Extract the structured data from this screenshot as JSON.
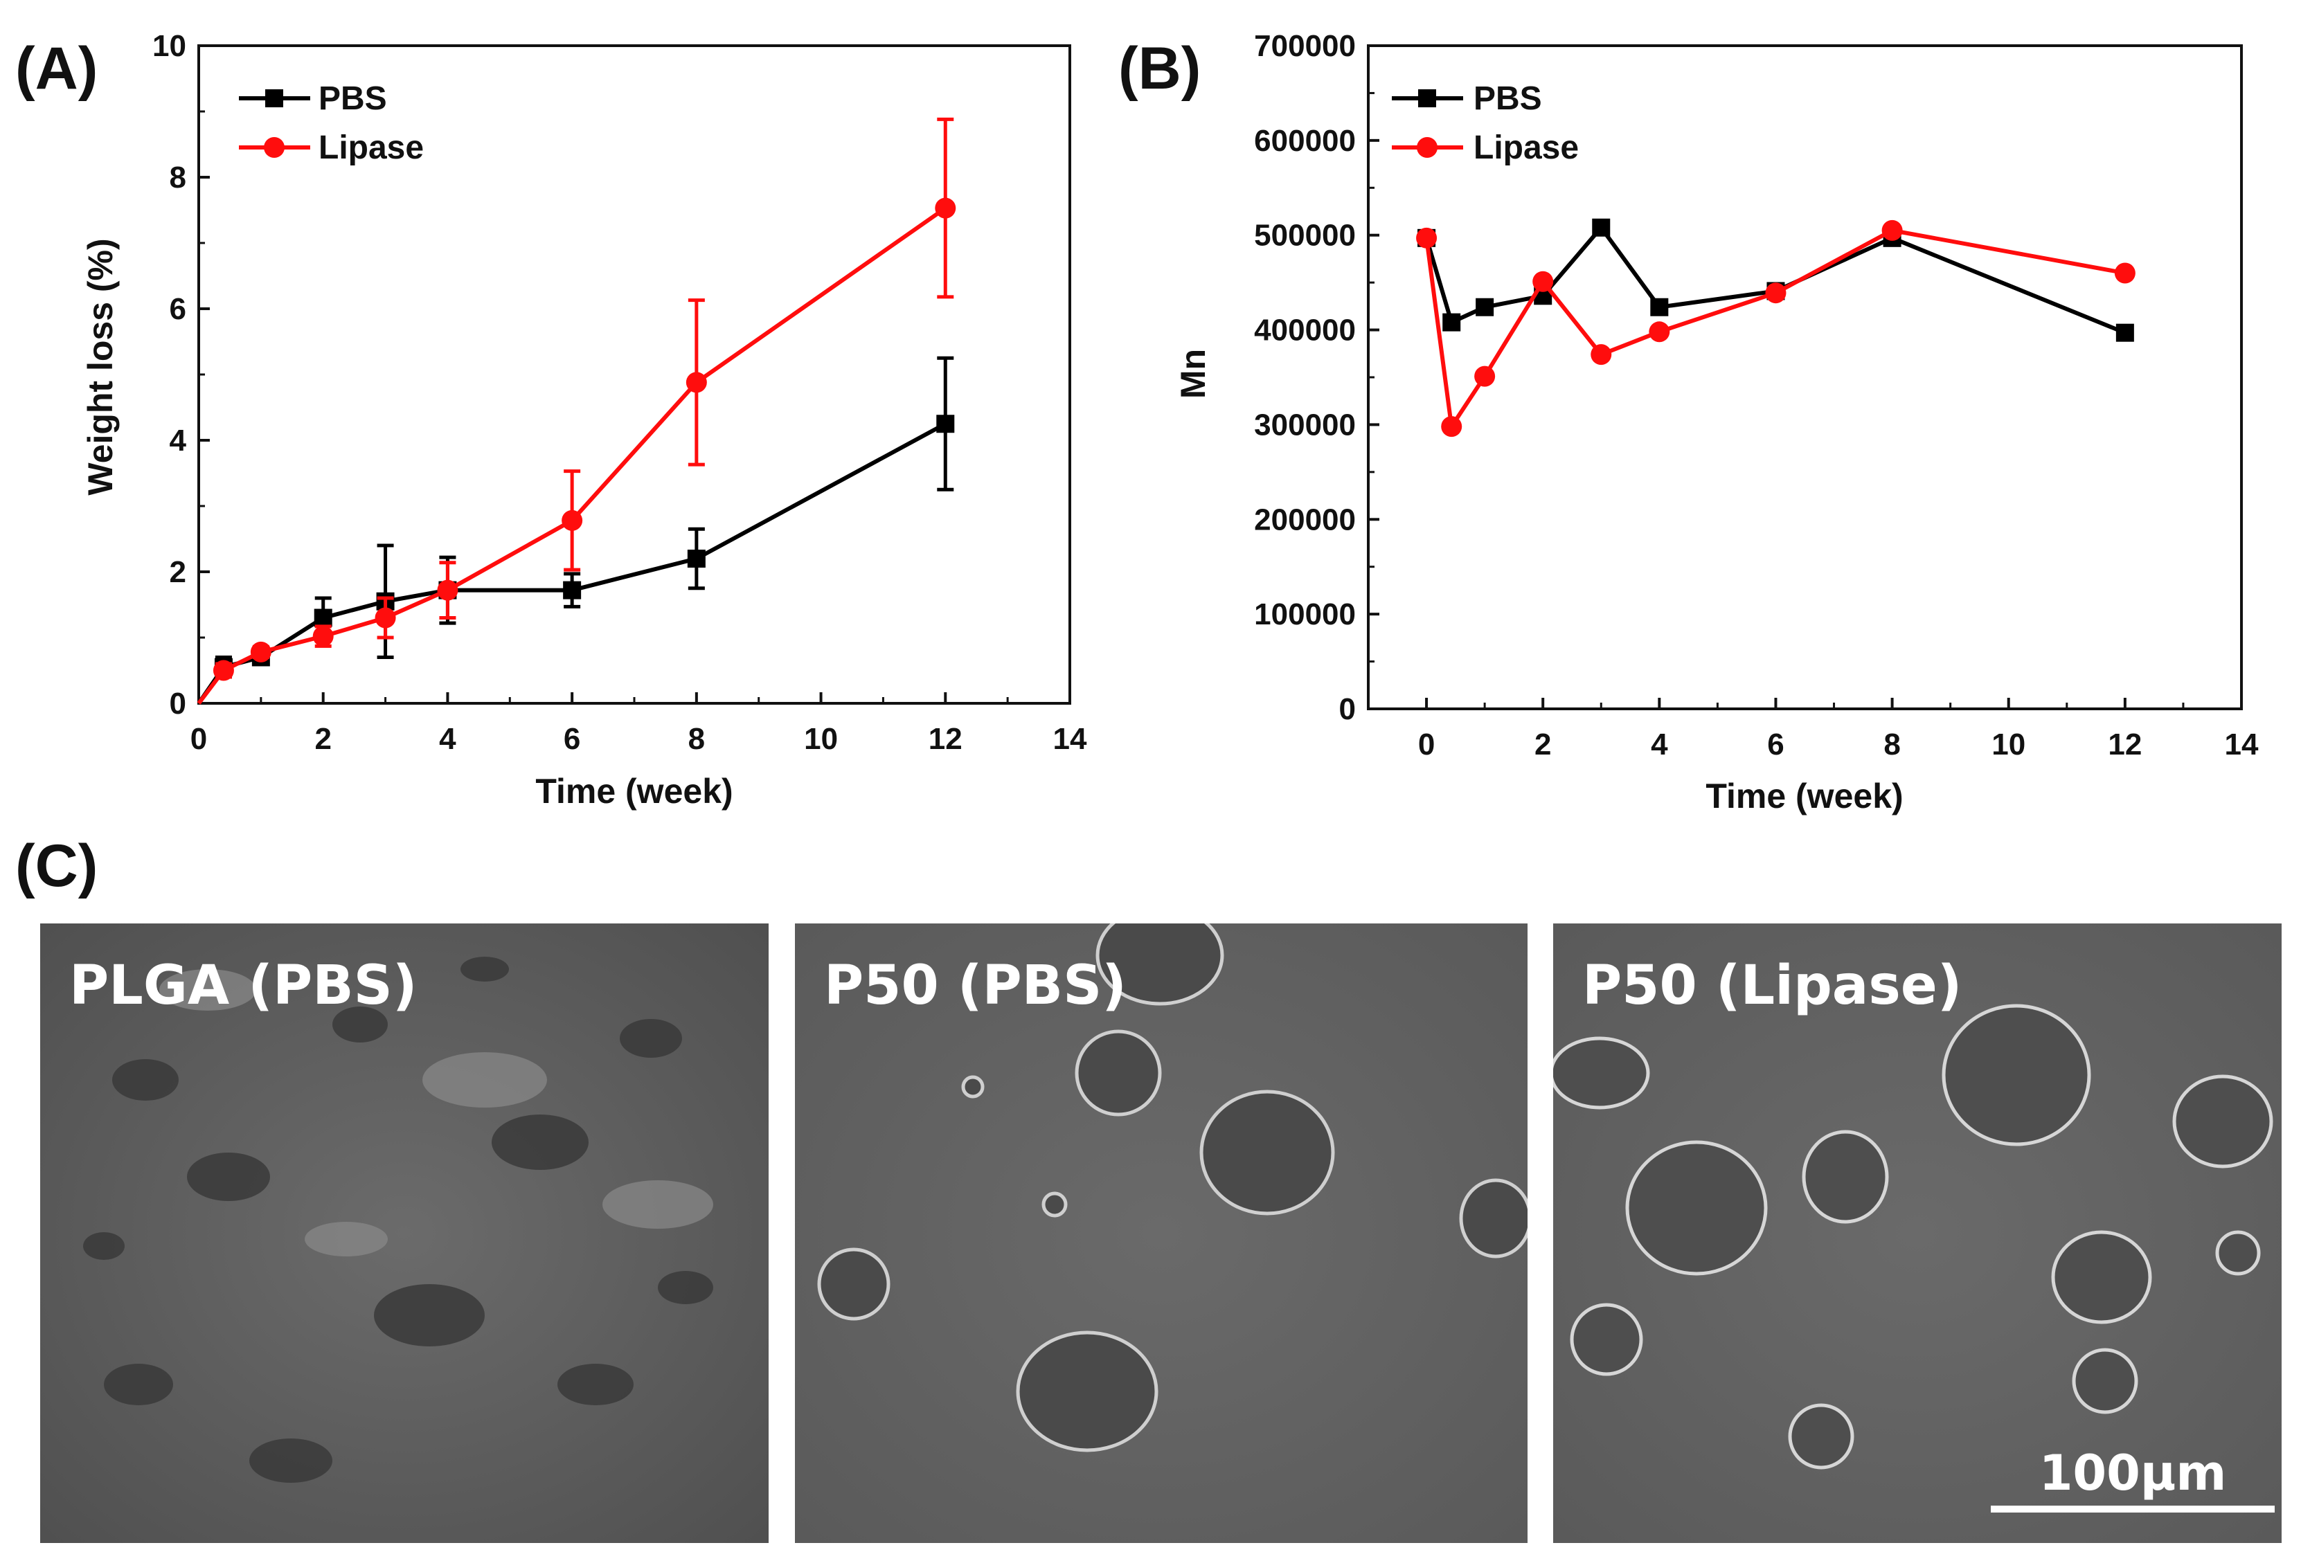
{
  "panel_labels": {
    "a": "(A)",
    "b": "(B)",
    "c": "(C)"
  },
  "colors": {
    "pbs": "#000000",
    "lipase": "#ff0d0d"
  },
  "chart_data": [
    {
      "id": "A",
      "type": "line",
      "title": "",
      "xlabel": "Time (week)",
      "ylabel": "Weight loss (%)",
      "xlim": [
        0,
        14
      ],
      "ylim": [
        0,
        10
      ],
      "x_ticks": [
        0,
        2,
        4,
        6,
        8,
        10,
        12,
        14
      ],
      "y_ticks": [
        0,
        2,
        4,
        6,
        8,
        10
      ],
      "legend_position": "top-left",
      "series": [
        {
          "name": "PBS",
          "marker": "square",
          "color": "#000000",
          "x": [
            0,
            0.4,
            1,
            2,
            3,
            4,
            6,
            8,
            12
          ],
          "y": [
            0,
            0.55,
            0.7,
            1.3,
            1.55,
            1.72,
            1.72,
            2.2,
            4.25
          ],
          "err": [
            0,
            0.15,
            0.1,
            0.3,
            0.85,
            0.5,
            0.25,
            0.45,
            1.0
          ]
        },
        {
          "name": "Lipase",
          "marker": "circle",
          "color": "#ff0d0d",
          "x": [
            0,
            0.4,
            1,
            2,
            3,
            4,
            6,
            8,
            12
          ],
          "y": [
            0,
            0.5,
            0.78,
            1.02,
            1.3,
            1.72,
            2.78,
            4.88,
            7.53
          ],
          "err": [
            0,
            0.1,
            0.08,
            0.15,
            0.3,
            0.42,
            0.75,
            1.25,
            1.35
          ]
        }
      ]
    },
    {
      "id": "B",
      "type": "line",
      "title": "",
      "xlabel": "Time (week)",
      "ylabel": "Mn",
      "xlim": [
        -1,
        14
      ],
      "ylim": [
        0,
        700000
      ],
      "x_ticks": [
        0,
        2,
        4,
        6,
        8,
        10,
        12,
        14
      ],
      "y_ticks": [
        0,
        100000,
        200000,
        300000,
        400000,
        500000,
        600000,
        700000
      ],
      "legend_position": "top-left",
      "series": [
        {
          "name": "PBS",
          "marker": "square",
          "color": "#000000",
          "x": [
            0,
            0.43,
            1,
            2,
            3,
            4,
            6,
            8,
            12
          ],
          "y": [
            497000,
            408000,
            424000,
            436000,
            508000,
            424000,
            441000,
            497000,
            397000
          ]
        },
        {
          "name": "Lipase",
          "marker": "circle",
          "color": "#ff0d0d",
          "x": [
            0,
            0.43,
            1,
            2,
            3,
            4,
            6,
            8,
            12
          ],
          "y": [
            497000,
            298000,
            351000,
            451000,
            374000,
            398000,
            439000,
            505000,
            460000
          ]
        }
      ]
    }
  ],
  "micrographs": [
    {
      "label": "PLGA (PBS)"
    },
    {
      "label": "P50 (PBS)"
    },
    {
      "label": "P50 (Lipase)"
    }
  ],
  "scale_bar": {
    "label": "100μm"
  }
}
